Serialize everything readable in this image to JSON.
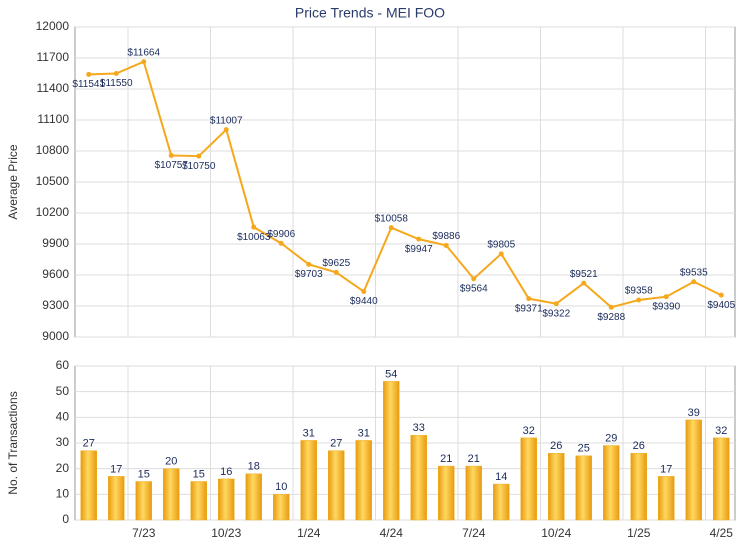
{
  "chart_data": [
    {
      "type": "line",
      "title": "Price Trends - MEI FOO",
      "y_label": "Average Price",
      "color": "#f5a81c",
      "grid": true,
      "values": [
        11541,
        11550,
        11664,
        10757,
        10750,
        11007,
        10063,
        9906,
        9703,
        9625,
        9440,
        10058,
        9947,
        9886,
        9564,
        9805,
        9371,
        9322,
        9521,
        9288,
        9358,
        9390,
        9535,
        9405
      ],
      "value_labels": [
        "$11541",
        "$11550",
        "$11664",
        "$10757",
        "$10750",
        "$11007",
        "$10063",
        "$9906",
        "$9703",
        "$9625",
        "$9440",
        "$10058",
        "$9947",
        "$9886",
        "$9564",
        "$9805",
        "$9371",
        "$9322",
        "$9521",
        "$9288",
        "$9358",
        "$9390",
        "$9535",
        "$9405"
      ],
      "ylim": [
        9000,
        12000
      ],
      "yticks": [
        9000,
        9300,
        9600,
        9900,
        10200,
        10500,
        10800,
        11100,
        11400,
        11700,
        12000
      ]
    },
    {
      "type": "bar",
      "y_label": "No. of Transactions",
      "color": "#f0b020",
      "grid": true,
      "categories": [
        null,
        null,
        "7/23",
        null,
        null,
        "10/23",
        null,
        null,
        "1/24",
        null,
        null,
        "4/24",
        null,
        null,
        "7/24",
        null,
        null,
        "10/24",
        null,
        null,
        "1/25",
        null,
        null,
        "4/25"
      ],
      "values": [
        27,
        17,
        15,
        20,
        15,
        16,
        18,
        10,
        31,
        27,
        31,
        54,
        33,
        21,
        21,
        14,
        32,
        26,
        25,
        29,
        26,
        17,
        39,
        32
      ],
      "ylim": [
        0,
        60
      ],
      "yticks": [
        0,
        10,
        20,
        30,
        40,
        50,
        60
      ]
    }
  ]
}
